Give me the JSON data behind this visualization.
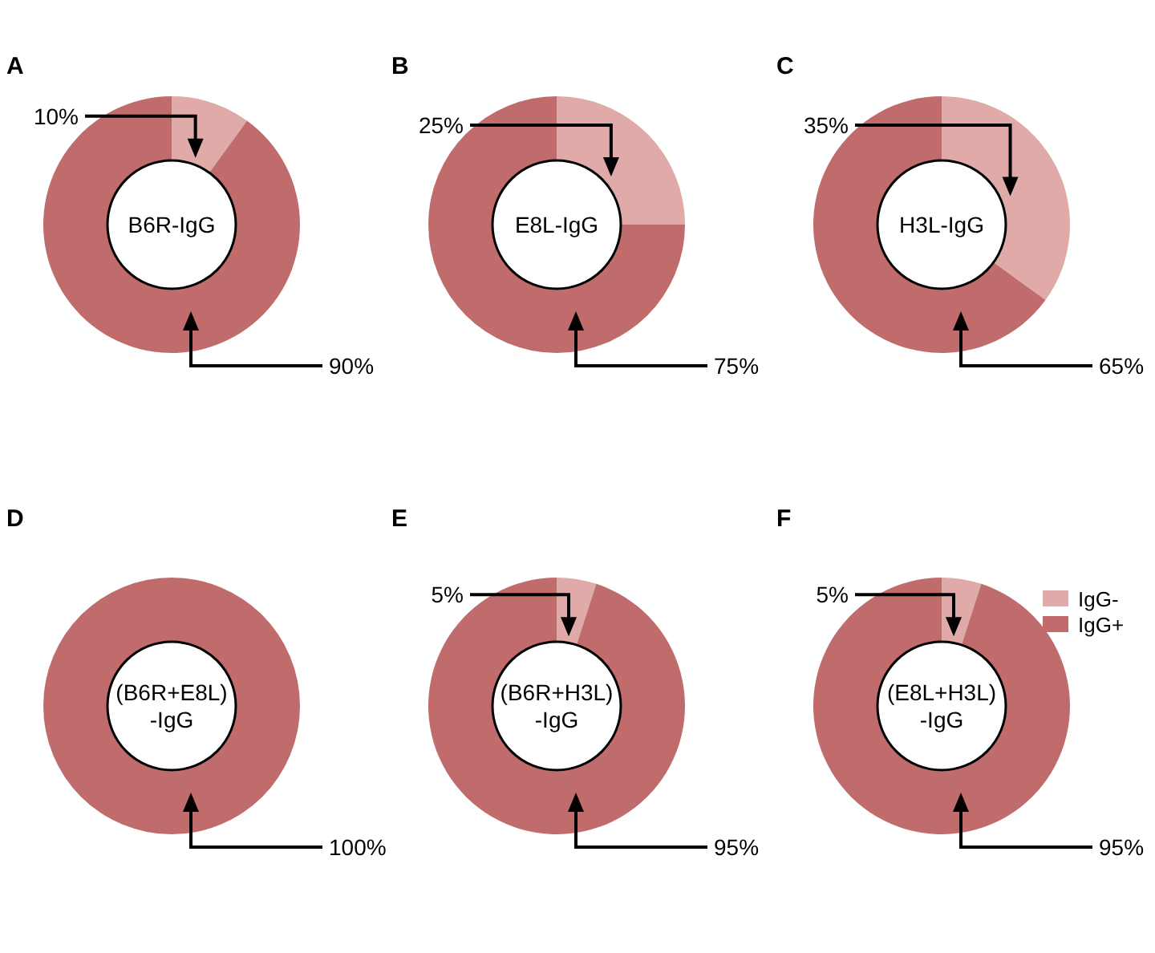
{
  "chart_data": [
    {
      "type": "donut",
      "title": "A",
      "categories": [
        null,
        null
      ],
      "values": [
        10,
        90
      ],
      "colors": [
        "#dfaaa7",
        "#c06b6c"
      ],
      "value_labels": [
        "10%",
        "90%"
      ],
      "annotations": [
        "B6R-IgG"
      ]
    },
    {
      "type": "donut",
      "title": "B",
      "categories": [
        null,
        null
      ],
      "values": [
        25,
        75
      ],
      "colors": [
        "#dfaaa7",
        "#c06b6c"
      ],
      "value_labels": [
        "25%",
        "75%"
      ],
      "annotations": [
        "E8L-IgG"
      ]
    },
    {
      "type": "donut",
      "title": "C",
      "categories": [
        null,
        null
      ],
      "values": [
        35,
        65
      ],
      "colors": [
        "#dfaaa7",
        "#c06b6c"
      ],
      "value_labels": [
        "35%",
        "65%"
      ],
      "annotations": [
        "H3L-IgG"
      ]
    },
    {
      "type": "donut",
      "title": "D",
      "categories": [
        null,
        null
      ],
      "values": [
        0,
        100
      ],
      "colors": [
        "#dfaaa7",
        "#c06b6c"
      ],
      "value_labels": [
        null,
        "100%"
      ],
      "annotations": [
        "(B6R+E8L)\n-IgG"
      ]
    },
    {
      "type": "donut",
      "title": "E",
      "categories": [
        null,
        null
      ],
      "values": [
        5,
        95
      ],
      "colors": [
        "#dfaaa7",
        "#c06b6c"
      ],
      "value_labels": [
        "5%",
        "95%"
      ],
      "annotations": [
        "(B6R+H3L)\n-IgG"
      ]
    },
    {
      "type": "donut",
      "title": "F",
      "categories": [
        "IgG-",
        "IgG+"
      ],
      "values": [
        5,
        95
      ],
      "colors": [
        "#dfaaa7",
        "#c06b6c"
      ],
      "value_labels": [
        "5%",
        "95%"
      ],
      "annotations": [
        "(E8L+H3L)\n-IgG"
      ],
      "legend": "top right"
    }
  ]
}
